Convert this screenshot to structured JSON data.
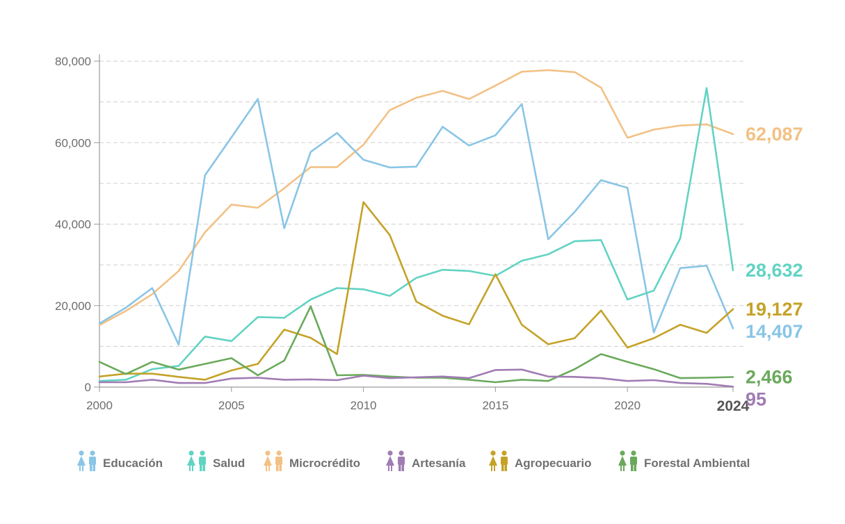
{
  "chart_data": {
    "type": "line",
    "title": "",
    "xlabel": "",
    "ylabel": "",
    "x": [
      2000,
      2001,
      2002,
      2003,
      2004,
      2005,
      2006,
      2007,
      2008,
      2009,
      2010,
      2011,
      2012,
      2013,
      2014,
      2015,
      2016,
      2017,
      2018,
      2019,
      2020,
      2021,
      2022,
      2023,
      2024
    ],
    "xlim": [
      2000,
      2024
    ],
    "ylim": [
      0,
      80000
    ],
    "x_ticks": [
      "2000",
      "2005",
      "2010",
      "2015",
      "2020"
    ],
    "x_end_tick": "2024",
    "y_ticks": [
      "0",
      "20,000",
      "40,000",
      "60,000",
      "80,000"
    ],
    "grid": true,
    "legend_position": "bottom",
    "series": [
      {
        "name": "Microcrédito",
        "color": "#F2C185",
        "icon": "people-icon",
        "end_label": "62,087",
        "values": [
          15200,
          18700,
          22800,
          28500,
          38000,
          44800,
          44000,
          48800,
          54000,
          54000,
          59500,
          68000,
          71000,
          72700,
          70700,
          74000,
          77400,
          77800,
          77300,
          73500,
          61200,
          63200,
          64200,
          64500,
          62087
        ]
      },
      {
        "name": "Educación",
        "color": "#89C5E6",
        "icon": "people-icon",
        "end_label": "14,407",
        "values": [
          15600,
          19500,
          24300,
          10400,
          52000,
          61300,
          70700,
          39000,
          57700,
          62400,
          55800,
          53900,
          54100,
          63900,
          59300,
          61800,
          69500,
          36300,
          43000,
          50800,
          48900,
          13400,
          29200,
          29800,
          14407
        ]
      },
      {
        "name": "Salud",
        "color": "#62D3C3",
        "icon": "people-icon",
        "end_label": "28,632",
        "values": [
          1500,
          1800,
          4400,
          5200,
          12400,
          11300,
          17200,
          17000,
          21500,
          24300,
          24000,
          22400,
          26800,
          28800,
          28500,
          27300,
          31000,
          32600,
          35800,
          36100,
          21500,
          23700,
          36500,
          73400,
          28632
        ]
      },
      {
        "name": "Agropecuario",
        "color": "#C4A227",
        "icon": "people-icon",
        "end_label": "19,127",
        "values": [
          2600,
          3300,
          3300,
          2500,
          1800,
          4100,
          5700,
          14100,
          12100,
          8100,
          45400,
          37300,
          21000,
          17500,
          15400,
          27700,
          15300,
          10500,
          12000,
          18800,
          9700,
          12000,
          15300,
          13300,
          19127
        ]
      },
      {
        "name": "Forestal Ambiental",
        "color": "#6AA95C",
        "icon": "people-icon",
        "end_label": "2,466",
        "values": [
          6200,
          3200,
          6200,
          4300,
          5700,
          7100,
          2900,
          6500,
          19800,
          2900,
          3000,
          2600,
          2300,
          2300,
          1800,
          1200,
          1800,
          1500,
          4400,
          8100,
          6200,
          4400,
          2200,
          2300,
          2466
        ]
      },
      {
        "name": "Artesanía",
        "color": "#A07CB3",
        "icon": "people-icon",
        "end_label": "95",
        "values": [
          1200,
          1200,
          1800,
          1000,
          1000,
          2100,
          2300,
          1800,
          1900,
          1700,
          2800,
          2200,
          2400,
          2600,
          2200,
          4200,
          4300,
          2600,
          2500,
          2200,
          1500,
          1700,
          1000,
          800,
          95
        ]
      }
    ],
    "legend_order": [
      "Educación",
      "Salud",
      "Microcrédito",
      "Artesanía",
      "Agropecuario",
      "Forestal Ambiental"
    ]
  },
  "axis_colors": {
    "text": "#6d6d6d",
    "grid": "#cfcfcf",
    "axis": "#9a9a9a"
  }
}
